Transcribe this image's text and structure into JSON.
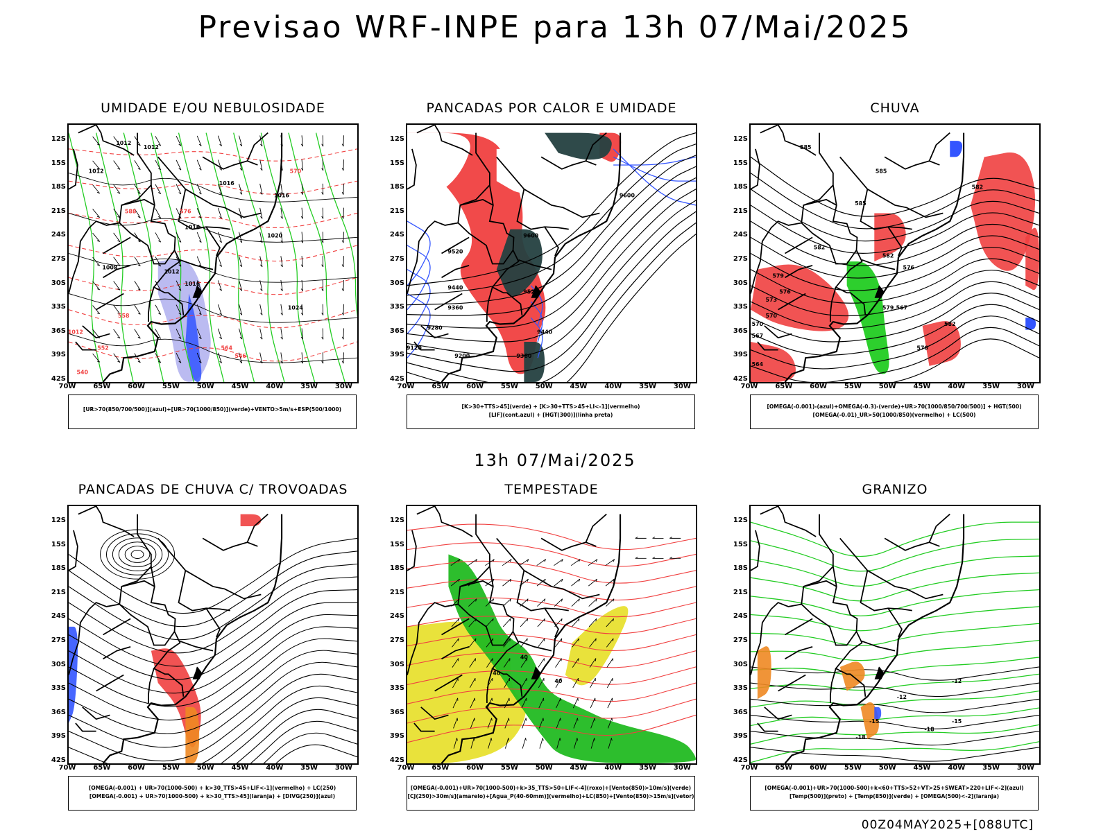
{
  "main_title": "Previsao WRF-INPE  para 13h 07/Mai/2025",
  "mid_title": "13h 07/Mai/2025",
  "footer": "00Z04MAY2025+[088UTC]",
  "lat_ticks": [
    "12S",
    "15S",
    "18S",
    "21S",
    "24S",
    "27S",
    "30S",
    "33S",
    "36S",
    "39S",
    "42S"
  ],
  "lon_ticks": [
    "70W",
    "65W",
    "60W",
    "55W",
    "50W",
    "45W",
    "40W",
    "35W",
    "30W"
  ],
  "panels": [
    {
      "title": "UMIDADE E/OU NEBULOSIDADE",
      "legend_1": "[UR>70(850/700/500)](azul)+[UR>70(1000/850)](verde)+VENTO>5m/s+ESP(500/1000)",
      "legend_2": "",
      "labels": [
        "1012",
        "1012",
        "1012",
        "1016",
        "1016",
        "1016",
        "1020",
        "1008",
        "1012",
        "1016",
        "1024",
        "1012",
        "570",
        "576",
        "558",
        "552",
        "546",
        "540",
        "564",
        "588"
      ]
    },
    {
      "title": "PANCADAS POR CALOR E UMIDADE",
      "legend_1": "[K>30+TTS>45](verde) + [K>30+TTS>45+LI<-1](vermelho)",
      "legend_2": "[LIF](cont.azul) + [HGT(300)](linha preta)",
      "labels": [
        "9600",
        "9600",
        "9520",
        "9440",
        "9360",
        "9280",
        "9120",
        "9200",
        "9520",
        "9440",
        "9360"
      ]
    },
    {
      "title": "CHUVA",
      "legend_1": "[OMEGA(-0.001)-(azul)+OMEGA(-0.3)-(verde)+UR>70(1000/850/700/500)] + HGT(500)",
      "legend_2": "[OMEGA(-0.01)_UR>50(1000/850)(vermelho) + LC(500)",
      "labels": [
        "585",
        "585",
        "585",
        "582",
        "582",
        "582",
        "579",
        "579",
        "576",
        "576",
        "573",
        "570",
        "570",
        "567",
        "564",
        "576",
        "567",
        "582"
      ]
    },
    {
      "title": "PANCADAS DE CHUVA C/ TROVOADAS",
      "legend_1": "[OMEGA(-0.001) + UR>70(1000-500) + k>30_TTS>45+LIF<-1](vermelho) + LC(250)",
      "legend_2": "[OMEGA(-0.001) + UR>70(1000-500) + k>30_TTS>45](laranja) + [DIVG(250)](azul)",
      "labels": []
    },
    {
      "title": "TEMPESTADE",
      "legend_1": "[OMEGA(-0.001)+UR>70(1000-500)+k>35_TTS>50+LIF<-4](roxo)+[Vento(850)>10m/s](verde)",
      "legend_2": "[CJ(250)>30m/s](amarelo)+[Agua_P(40-60mm)](vermelho)+LC(850)+[Vento(850)>15m/s](vetor)",
      "labels": [
        "40",
        "40",
        "40"
      ]
    },
    {
      "title": "GRANIZO",
      "legend_1": "[OMEGA(-0.001)+UR>70(1000-500)+k<60+TTS>52+VT>25+SWEAT>220+LIF<-2](azul)",
      "legend_2": "[Temp(500)](preto) + [Temp(850)](verde) + [OMEGA(500)<-2](laranja)",
      "labels": [
        "-12",
        "-15",
        "-18",
        "-12",
        "-15",
        "-18"
      ]
    }
  ],
  "colors": {
    "red": "#f04040",
    "green": "#22cc22",
    "blue": "#3355ff",
    "lavender": "#aaaaee",
    "darkteal": "#244040",
    "yellow": "#e8e030",
    "orange": "#ee8822",
    "black": "#000000"
  }
}
